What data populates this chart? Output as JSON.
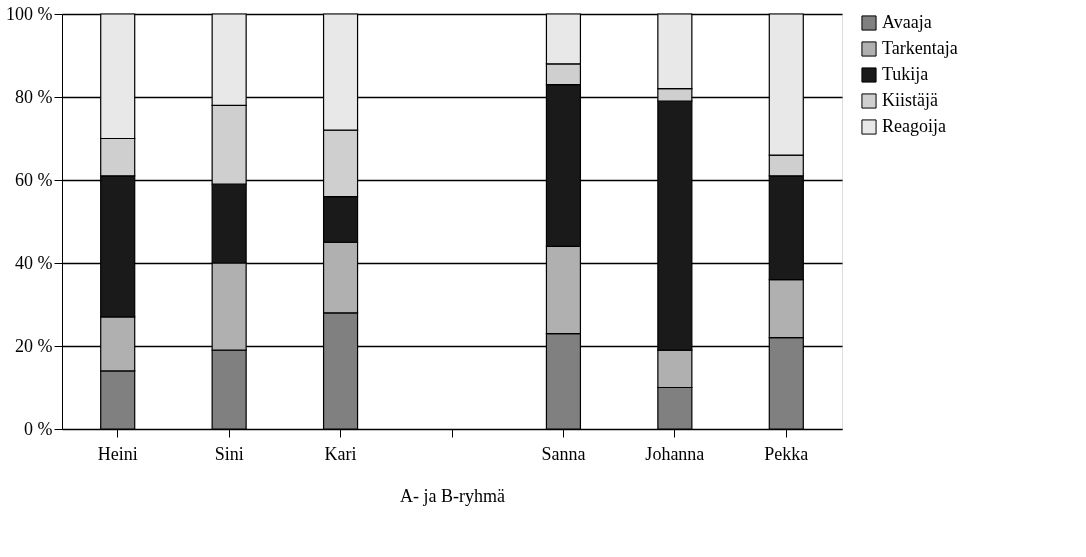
{
  "chart_data": {
    "type": "bar",
    "stacked": true,
    "xlabel": "A- ja B-ryhmä",
    "categories": [
      "Heini",
      "Sini",
      "Kari",
      null,
      "Sanna",
      "Johanna",
      "Pekka"
    ],
    "series": [
      {
        "name": "Avaaja",
        "color": "#808080",
        "values": [
          14,
          19,
          28,
          null,
          23,
          10,
          22
        ]
      },
      {
        "name": "Tarkentaja",
        "color": "#b0b0b0",
        "values": [
          13,
          21,
          17,
          null,
          21,
          9,
          14
        ]
      },
      {
        "name": "Tukija",
        "color": "#1a1a1a",
        "values": [
          34,
          19,
          11,
          null,
          39,
          60,
          25
        ]
      },
      {
        "name": "Kiistäjä",
        "color": "#cfcfcf",
        "values": [
          9,
          19,
          16,
          null,
          5,
          3,
          5
        ]
      },
      {
        "name": "Reagoija",
        "color": "#e8e8e8",
        "values": [
          30,
          22,
          28,
          null,
          12,
          18,
          34
        ]
      }
    ],
    "ylim": [
      0,
      100
    ],
    "yticks": [
      {
        "value": 0,
        "label": "0 %"
      },
      {
        "value": 20,
        "label": "20 %"
      },
      {
        "value": 40,
        "label": "40 %"
      },
      {
        "value": 60,
        "label": "60 %"
      },
      {
        "value": 80,
        "label": "80 %"
      },
      {
        "value": 100,
        "label": "100 %"
      }
    ],
    "grid": "y",
    "legend": "right"
  }
}
